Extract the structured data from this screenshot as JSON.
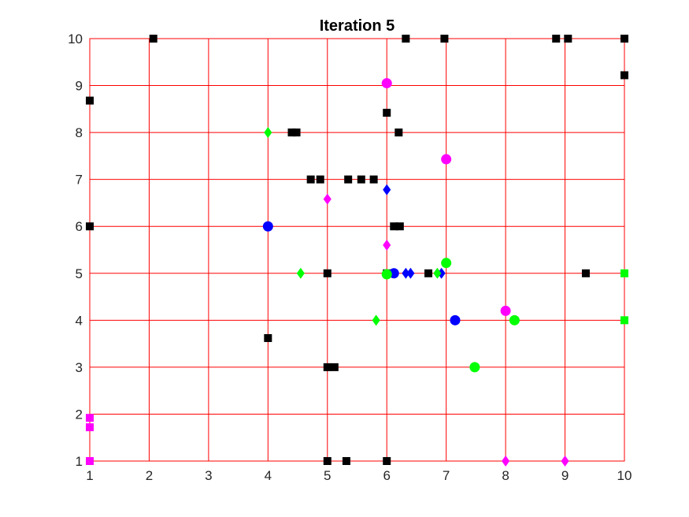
{
  "chart_data": {
    "type": "scatter",
    "title": "Iteration 5",
    "xlabel": "",
    "ylabel": "",
    "xlim": [
      1,
      10
    ],
    "ylim": [
      1,
      10
    ],
    "xticks": [
      "1",
      "2",
      "3",
      "4",
      "5",
      "6",
      "7",
      "8",
      "9",
      "10"
    ],
    "yticks": [
      "1",
      "2",
      "3",
      "4",
      "5",
      "6",
      "7",
      "8",
      "9",
      "10"
    ],
    "grid": true,
    "colors": {
      "grid": "#ff0000",
      "black": "#000000",
      "magenta": "#ff00ff",
      "green": "#00ff00",
      "blue": "#0000ff"
    },
    "series": [
      {
        "color": "#000000",
        "marker": "square",
        "points": [
          [
            2.07,
            10
          ],
          [
            6.32,
            10
          ],
          [
            6.97,
            10
          ],
          [
            8.85,
            10
          ],
          [
            9.05,
            10
          ],
          [
            10,
            10
          ],
          [
            10,
            9.22
          ],
          [
            1,
            8.68
          ],
          [
            6,
            8.42
          ],
          [
            6.2,
            8
          ],
          [
            4.4,
            8
          ],
          [
            4.48,
            8
          ],
          [
            4.72,
            7
          ],
          [
            4.88,
            7
          ],
          [
            5.35,
            7
          ],
          [
            5.57,
            7
          ],
          [
            5.78,
            7
          ],
          [
            1,
            6
          ],
          [
            6.12,
            6
          ],
          [
            6.22,
            6
          ],
          [
            5,
            5
          ],
          [
            6,
            5
          ],
          [
            6.7,
            5
          ],
          [
            9.35,
            5
          ],
          [
            4,
            3.62
          ],
          [
            5,
            3
          ],
          [
            5.12,
            3
          ],
          [
            5,
            1
          ],
          [
            5.32,
            1
          ],
          [
            6,
            1
          ]
        ]
      },
      {
        "color": "#ff00ff",
        "marker": "square",
        "points": [
          [
            1,
            1.92
          ],
          [
            1,
            1.72
          ],
          [
            1,
            1
          ]
        ]
      },
      {
        "color": "#00ff00",
        "marker": "square",
        "points": [
          [
            10,
            5
          ],
          [
            10,
            4
          ]
        ]
      },
      {
        "color": "#0000ff",
        "marker": "circle",
        "points": [
          [
            4,
            6
          ],
          [
            6.12,
            5
          ],
          [
            7.15,
            4
          ]
        ]
      },
      {
        "color": "#ff00ff",
        "marker": "circle",
        "points": [
          [
            6,
            9.05
          ],
          [
            7,
            7.43
          ],
          [
            8,
            4.2
          ]
        ]
      },
      {
        "color": "#00ff00",
        "marker": "circle",
        "points": [
          [
            6,
            4.98
          ],
          [
            7,
            5.22
          ],
          [
            8.15,
            4
          ],
          [
            7.48,
            3
          ]
        ]
      },
      {
        "color": "#0000ff",
        "marker": "diamond",
        "points": [
          [
            6,
            6.78
          ],
          [
            6.32,
            5
          ],
          [
            6.4,
            5
          ],
          [
            6.92,
            5
          ]
        ]
      },
      {
        "color": "#ff00ff",
        "marker": "diamond",
        "points": [
          [
            5,
            6.58
          ],
          [
            6,
            5.6
          ],
          [
            8,
            1
          ],
          [
            9,
            1
          ]
        ]
      },
      {
        "color": "#00ff00",
        "marker": "diamond",
        "points": [
          [
            4,
            8
          ],
          [
            4.55,
            5
          ],
          [
            5.82,
            4
          ],
          [
            6.85,
            5
          ]
        ]
      }
    ]
  }
}
